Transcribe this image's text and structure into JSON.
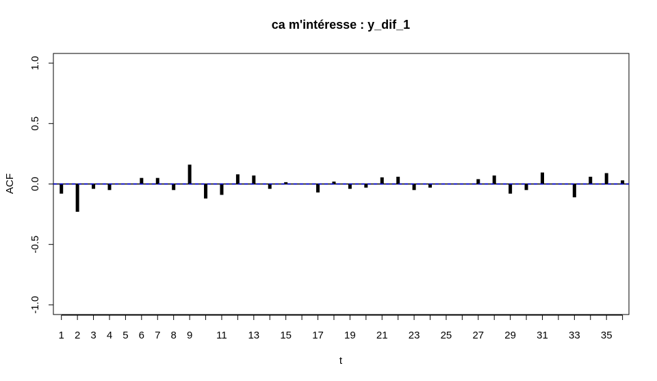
{
  "chart_data": {
    "type": "bar",
    "title": "ca m'intéresse : y_dif_1",
    "xlabel": "t",
    "ylabel": "ACF",
    "xlim": [
      0.5,
      36.4
    ],
    "ylim": [
      -1.08,
      1.08
    ],
    "y_ticks": [
      -1.0,
      -0.5,
      0.0,
      0.5,
      1.0
    ],
    "y_tick_labels": [
      "-1.0",
      "-0.5",
      "0.0",
      "0.5",
      "1.0"
    ],
    "x_tick_positions": [
      1,
      2,
      3,
      4,
      5,
      6,
      7,
      8,
      9,
      11,
      13,
      15,
      17,
      19,
      21,
      23,
      25,
      27,
      29,
      31,
      33,
      35
    ],
    "x_tick_labels": [
      "1",
      "2",
      "3",
      "4",
      "5",
      "6",
      "7",
      "8",
      "9",
      "11",
      "13",
      "15",
      "17",
      "19",
      "21",
      "23",
      "25",
      "27",
      "29",
      "31",
      "33",
      "35"
    ],
    "x": [
      1,
      2,
      3,
      4,
      5,
      6,
      7,
      8,
      9,
      10,
      11,
      12,
      13,
      14,
      15,
      16,
      17,
      18,
      19,
      20,
      21,
      22,
      23,
      24,
      25,
      26,
      27,
      28,
      29,
      30,
      31,
      32,
      33,
      34,
      35,
      36
    ],
    "values": [
      -0.08,
      -0.23,
      -0.04,
      -0.05,
      0.0,
      0.05,
      0.05,
      -0.05,
      0.16,
      -0.12,
      -0.09,
      0.08,
      0.07,
      -0.04,
      0.015,
      0.0,
      -0.07,
      0.02,
      -0.04,
      -0.03,
      0.055,
      0.06,
      -0.05,
      -0.03,
      0.0,
      0.0,
      0.04,
      0.07,
      -0.08,
      -0.05,
      0.095,
      0.0,
      -0.11,
      0.06,
      0.09,
      0.03
    ],
    "confidence_band": 0.0,
    "bar_color": "#000000",
    "zero_line_color": "#000000",
    "ci_line_color": "#0000cd",
    "grid": false
  }
}
